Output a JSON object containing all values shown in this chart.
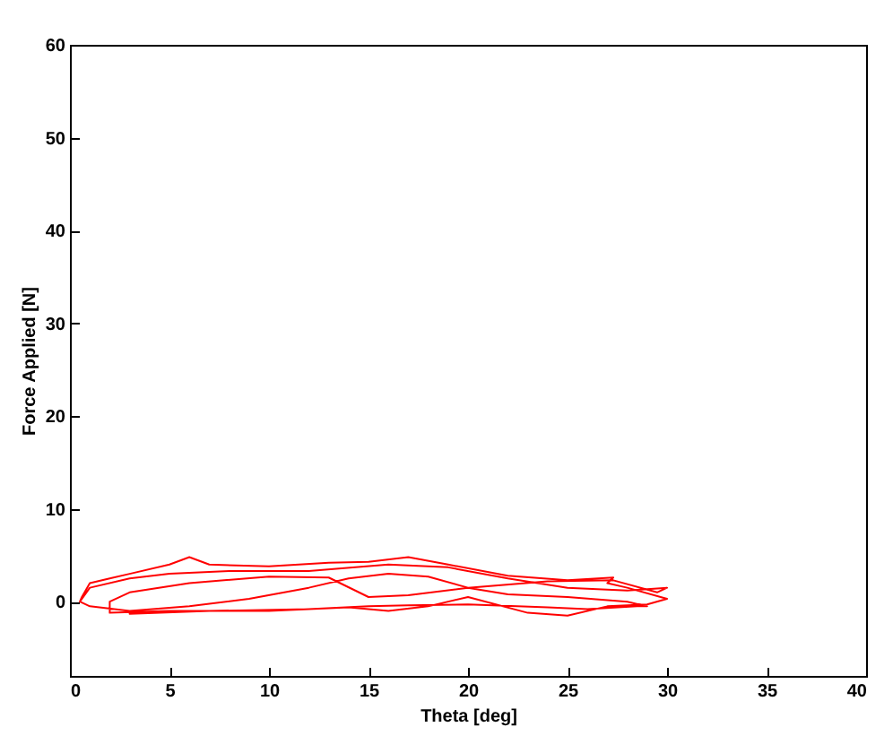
{
  "chart_data": {
    "type": "line",
    "xlabel": "Theta [deg]",
    "ylabel": "Force Applied [N]",
    "xlim": [
      0,
      40
    ],
    "xticks": [
      0,
      5,
      10,
      15,
      20,
      25,
      30,
      35,
      40
    ],
    "ylim": [
      -8,
      60
    ],
    "yticks": [
      0,
      10,
      20,
      30,
      40,
      50,
      60
    ],
    "grid": false,
    "marker": "none",
    "line_style": "solid",
    "series": [
      {
        "color": "#ff0000",
        "x": [
          0.5,
          0.6,
          1,
          2,
          3,
          5,
          6,
          7,
          10,
          13,
          15,
          17,
          19,
          22,
          25,
          27.3,
          27,
          28,
          30,
          29,
          27,
          25,
          23,
          20,
          18,
          16,
          14,
          10,
          5,
          2,
          2,
          3,
          6,
          10,
          13,
          15,
          17,
          20,
          24,
          27.3,
          29.5,
          30,
          28,
          25,
          22,
          19,
          16,
          12,
          8,
          5,
          3,
          1,
          0.5,
          1,
          3,
          6,
          9,
          12,
          14,
          16,
          18,
          20,
          22,
          25,
          28,
          29,
          28.5,
          26,
          24,
          20,
          17,
          15,
          12,
          7,
          3
        ],
        "values": [
          0,
          0.5,
          2,
          2.5,
          3,
          4,
          4.8,
          4,
          3.8,
          4.2,
          4.3,
          4.8,
          4,
          2.8,
          2.3,
          2.6,
          2,
          1.5,
          0.3,
          -0.3,
          -0.5,
          -1.5,
          -1.2,
          0.5,
          -0.5,
          -1,
          -0.6,
          -1,
          -1,
          -1.2,
          0,
          1,
          2,
          2.7,
          2.6,
          0.5,
          0.7,
          1.5,
          2.2,
          2.3,
          1,
          1.5,
          1.2,
          1.5,
          2.5,
          3.7,
          4,
          3.3,
          3.3,
          3,
          2.5,
          1.5,
          0,
          -0.5,
          -1,
          -0.5,
          0.3,
          1.5,
          2.5,
          3,
          2.7,
          1.5,
          0.8,
          0.5,
          0,
          -0.5,
          -0.5,
          -0.8,
          -0.6,
          -0.3,
          -0.4,
          -0.5,
          -0.8,
          -1,
          -1.3
        ]
      }
    ]
  }
}
